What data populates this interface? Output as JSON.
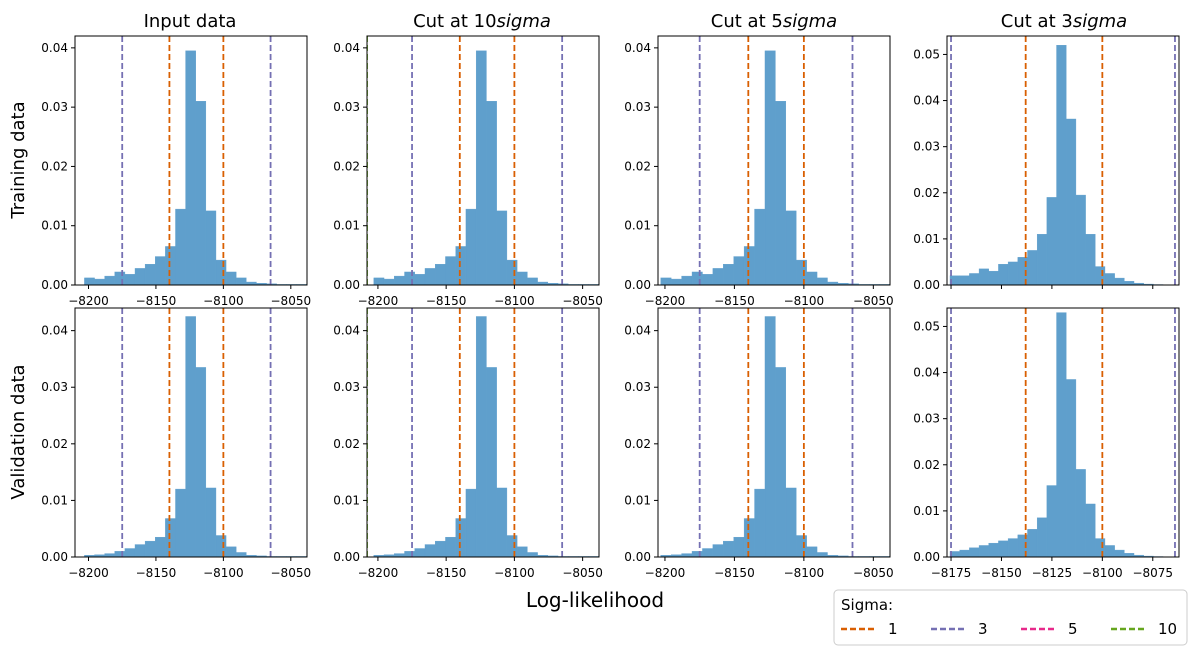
{
  "figure": {
    "xlabel": "Log-likelihood",
    "row_labels": [
      "Training data",
      "Validation data"
    ],
    "column_titles": [
      {
        "text": "Input data",
        "italic": ""
      },
      {
        "text": "Cut at 10",
        "italic": "sigma"
      },
      {
        "text": "Cut at 5",
        "italic": "sigma"
      },
      {
        "text": "Cut at 3",
        "italic": "sigma"
      }
    ],
    "legend": {
      "title": "Sigma:",
      "entries": [
        {
          "label": "1",
          "color": "#d95f02"
        },
        {
          "label": "3",
          "color": "#7570b3"
        },
        {
          "label": "5",
          "color": "#e7298a"
        },
        {
          "label": "10",
          "color": "#66a61e"
        }
      ]
    },
    "colors": {
      "bars": "#5f9fcc",
      "sigma1": "#d95f02",
      "sigma3": "#7570b3",
      "sigma5": "#e7298a",
      "sigma10": "#66a61e"
    }
  },
  "chart_data": [
    {
      "type": "bar",
      "row": 0,
      "col": 0,
      "xlim": [
        -8210,
        -8038
      ],
      "ylim": [
        0,
        0.042
      ],
      "xticks": [
        -8200,
        -8150,
        -8100,
        -8050
      ],
      "xtick_labels": [
        "−8200",
        "−8150",
        "−8100",
        "−8050"
      ],
      "yticks": [
        0.0,
        0.01,
        0.02,
        0.03,
        0.04
      ],
      "ytick_labels": [
        "0.00",
        "0.01",
        "0.02",
        "0.03",
        "0.04"
      ],
      "bin_width": 7.5,
      "bin_starts": [
        -8203,
        -8195.5,
        -8188,
        -8180.5,
        -8173,
        -8165.5,
        -8158,
        -8150.5,
        -8143,
        -8135.5,
        -8128,
        -8120.5,
        -8113,
        -8105.5,
        -8098,
        -8090.5,
        -8083,
        -8075.5,
        -8068,
        -8060.5,
        -8053,
        -8045.5
      ],
      "values": [
        0.0012,
        0.001,
        0.0015,
        0.0022,
        0.0018,
        0.0028,
        0.0035,
        0.0048,
        0.0065,
        0.0128,
        0.0395,
        0.031,
        0.0125,
        0.0042,
        0.0022,
        0.0012,
        0.0005,
        0.0003,
        0.0002,
        0.0001,
        0.0001,
        0.0001
      ],
      "vlines": [
        {
          "sigma": 1,
          "x": [
            -8140,
            -8100
          ]
        },
        {
          "sigma": 3,
          "x": [
            -8175,
            -8065
          ]
        }
      ]
    },
    {
      "type": "bar",
      "row": 0,
      "col": 1,
      "xlim": [
        -8208,
        -8038
      ],
      "ylim": [
        0,
        0.042
      ],
      "xticks": [
        -8200,
        -8150,
        -8100,
        -8050
      ],
      "xtick_labels": [
        "−8200",
        "−8150",
        "−8100",
        "−8050"
      ],
      "yticks": [
        0.0,
        0.01,
        0.02,
        0.03,
        0.04
      ],
      "ytick_labels": [
        "0.00",
        "0.01",
        "0.02",
        "0.03",
        "0.04"
      ],
      "bin_width": 7.5,
      "bin_starts": [
        -8203,
        -8195.5,
        -8188,
        -8180.5,
        -8173,
        -8165.5,
        -8158,
        -8150.5,
        -8143,
        -8135.5,
        -8128,
        -8120.5,
        -8113,
        -8105.5,
        -8098,
        -8090.5,
        -8083,
        -8075.5,
        -8068,
        -8060.5,
        -8053,
        -8045.5
      ],
      "values": [
        0.0012,
        0.001,
        0.0015,
        0.0022,
        0.0018,
        0.0028,
        0.0035,
        0.0048,
        0.0065,
        0.0128,
        0.0395,
        0.031,
        0.0125,
        0.0042,
        0.0022,
        0.0012,
        0.0005,
        0.0003,
        0.0002,
        0.0001,
        0.0001,
        0.0001
      ],
      "vlines": [
        {
          "sigma": 1,
          "x": [
            -8140,
            -8100
          ]
        },
        {
          "sigma": 3,
          "x": [
            -8175,
            -8065
          ]
        },
        {
          "sigma": 10,
          "x": [
            -8208
          ]
        }
      ]
    },
    {
      "type": "bar",
      "row": 0,
      "col": 2,
      "xlim": [
        -8205,
        -8038
      ],
      "ylim": [
        0,
        0.042
      ],
      "xticks": [
        -8200,
        -8150,
        -8100,
        -8050
      ],
      "xtick_labels": [
        "−8200",
        "−8150",
        "−8100",
        "−8050"
      ],
      "yticks": [
        0.0,
        0.01,
        0.02,
        0.03,
        0.04
      ],
      "ytick_labels": [
        "0.00",
        "0.01",
        "0.02",
        "0.03",
        "0.04"
      ],
      "bin_width": 7.5,
      "bin_starts": [
        -8203,
        -8195.5,
        -8188,
        -8180.5,
        -8173,
        -8165.5,
        -8158,
        -8150.5,
        -8143,
        -8135.5,
        -8128,
        -8120.5,
        -8113,
        -8105.5,
        -8098,
        -8090.5,
        -8083,
        -8075.5,
        -8068,
        -8060.5,
        -8053,
        -8045.5
      ],
      "values": [
        0.0012,
        0.001,
        0.0015,
        0.0022,
        0.0018,
        0.0028,
        0.0035,
        0.0048,
        0.0065,
        0.0128,
        0.0395,
        0.031,
        0.0125,
        0.0042,
        0.0022,
        0.0012,
        0.0005,
        0.0003,
        0.0002,
        0.0001,
        0.0001,
        0.0001
      ],
      "vlines": [
        {
          "sigma": 1,
          "x": [
            -8140,
            -8100
          ]
        },
        {
          "sigma": 3,
          "x": [
            -8175,
            -8065
          ]
        }
      ]
    },
    {
      "type": "bar",
      "row": 0,
      "col": 3,
      "xlim": [
        -8177,
        -8062
      ],
      "ylim": [
        0,
        0.054
      ],
      "xticks": [
        -8175,
        -8150,
        -8125,
        -8100,
        -8075
      ],
      "xtick_labels": [
        "",
        "",
        "",
        "",
        ""
      ],
      "yticks": [
        0.0,
        0.01,
        0.02,
        0.03,
        0.04,
        0.05
      ],
      "ytick_labels": [
        "0.00",
        "0.01",
        "0.02",
        "0.03",
        "0.04",
        "0.05"
      ],
      "bin_width": 4.8,
      "bin_starts": [
        -8175.5,
        -8170.7,
        -8165.9,
        -8161.1,
        -8156.3,
        -8151.5,
        -8146.7,
        -8141.9,
        -8137.1,
        -8132.3,
        -8127.5,
        -8122.7,
        -8117.9,
        -8113.1,
        -8108.3,
        -8103.5,
        -8098.7,
        -8093.9,
        -8089.1,
        -8084.3,
        -8079.5,
        -8074.7
      ],
      "values": [
        0.002,
        0.002,
        0.0025,
        0.0035,
        0.003,
        0.0045,
        0.005,
        0.006,
        0.0075,
        0.011,
        0.019,
        0.052,
        0.036,
        0.0195,
        0.011,
        0.004,
        0.0025,
        0.0015,
        0.0008,
        0.0004,
        0.0002,
        0.0001
      ],
      "vlines": [
        {
          "sigma": 1,
          "x": [
            -8138,
            -8100
          ]
        },
        {
          "sigma": 3,
          "x": [
            -8175,
            -8064
          ]
        }
      ]
    },
    {
      "type": "bar",
      "row": 1,
      "col": 0,
      "xlim": [
        -8210,
        -8038
      ],
      "ylim": [
        0,
        0.044
      ],
      "xticks": [
        -8200,
        -8150,
        -8100,
        -8050
      ],
      "xtick_labels": [
        "−8200",
        "−8150",
        "−8100",
        "−8050"
      ],
      "yticks": [
        0.0,
        0.01,
        0.02,
        0.03,
        0.04
      ],
      "ytick_labels": [
        "0.00",
        "0.01",
        "0.02",
        "0.03",
        "0.04"
      ],
      "bin_width": 7.5,
      "bin_starts": [
        -8203,
        -8195.5,
        -8188,
        -8180.5,
        -8173,
        -8165.5,
        -8158,
        -8150.5,
        -8143,
        -8135.5,
        -8128,
        -8120.5,
        -8113,
        -8105.5,
        -8098,
        -8090.5,
        -8083,
        -8075.5,
        -8068,
        -8060.5,
        -8053,
        -8045.5
      ],
      "values": [
        0.0003,
        0.0004,
        0.0006,
        0.001,
        0.0015,
        0.0022,
        0.0028,
        0.0035,
        0.0068,
        0.012,
        0.0425,
        0.0335,
        0.0122,
        0.0038,
        0.0018,
        0.0008,
        0.0003,
        0.0002,
        0.0001,
        0.0001,
        0.0001,
        0.0001
      ],
      "vlines": [
        {
          "sigma": 1,
          "x": [
            -8140,
            -8100
          ]
        },
        {
          "sigma": 3,
          "x": [
            -8175,
            -8065
          ]
        }
      ]
    },
    {
      "type": "bar",
      "row": 1,
      "col": 1,
      "xlim": [
        -8208,
        -8038
      ],
      "ylim": [
        0,
        0.044
      ],
      "xticks": [
        -8200,
        -8150,
        -8100,
        -8050
      ],
      "xtick_labels": [
        "−8200",
        "−8150",
        "−8100",
        "−8050"
      ],
      "yticks": [
        0.0,
        0.01,
        0.02,
        0.03,
        0.04
      ],
      "ytick_labels": [
        "0.00",
        "0.01",
        "0.02",
        "0.03",
        "0.04"
      ],
      "bin_width": 7.5,
      "bin_starts": [
        -8203,
        -8195.5,
        -8188,
        -8180.5,
        -8173,
        -8165.5,
        -8158,
        -8150.5,
        -8143,
        -8135.5,
        -8128,
        -8120.5,
        -8113,
        -8105.5,
        -8098,
        -8090.5,
        -8083,
        -8075.5,
        -8068,
        -8060.5,
        -8053,
        -8045.5
      ],
      "values": [
        0.0003,
        0.0004,
        0.0006,
        0.001,
        0.0015,
        0.0022,
        0.0028,
        0.0035,
        0.0068,
        0.012,
        0.0425,
        0.0335,
        0.0122,
        0.0038,
        0.0018,
        0.0008,
        0.0003,
        0.0002,
        0.0001,
        0.0001,
        0.0001,
        0.0001
      ],
      "vlines": [
        {
          "sigma": 1,
          "x": [
            -8140,
            -8100
          ]
        },
        {
          "sigma": 3,
          "x": [
            -8175,
            -8065
          ]
        },
        {
          "sigma": 10,
          "x": [
            -8208
          ]
        }
      ]
    },
    {
      "type": "bar",
      "row": 1,
      "col": 2,
      "xlim": [
        -8205,
        -8038
      ],
      "ylim": [
        0,
        0.044
      ],
      "xticks": [
        -8200,
        -8150,
        -8100,
        -8050
      ],
      "xtick_labels": [
        "−8200",
        "−8150",
        "−8100",
        "−8050"
      ],
      "yticks": [
        0.0,
        0.01,
        0.02,
        0.03,
        0.04
      ],
      "ytick_labels": [
        "0.00",
        "0.01",
        "0.02",
        "0.03",
        "0.04"
      ],
      "bin_width": 7.5,
      "bin_starts": [
        -8203,
        -8195.5,
        -8188,
        -8180.5,
        -8173,
        -8165.5,
        -8158,
        -8150.5,
        -8143,
        -8135.5,
        -8128,
        -8120.5,
        -8113,
        -8105.5,
        -8098,
        -8090.5,
        -8083,
        -8075.5,
        -8068,
        -8060.5,
        -8053,
        -8045.5
      ],
      "values": [
        0.0003,
        0.0004,
        0.0006,
        0.001,
        0.0015,
        0.0022,
        0.0028,
        0.0035,
        0.0068,
        0.012,
        0.0425,
        0.0335,
        0.0122,
        0.0038,
        0.0018,
        0.0008,
        0.0003,
        0.0002,
        0.0001,
        0.0001,
        0.0001,
        0.0001
      ],
      "vlines": [
        {
          "sigma": 1,
          "x": [
            -8140,
            -8100
          ]
        },
        {
          "sigma": 3,
          "x": [
            -8175,
            -8065
          ]
        }
      ]
    },
    {
      "type": "bar",
      "row": 1,
      "col": 3,
      "xlim": [
        -8177,
        -8062
      ],
      "ylim": [
        0,
        0.054
      ],
      "xticks": [
        -8175,
        -8150,
        -8125,
        -8100,
        -8075
      ],
      "xtick_labels": [
        "−8175",
        "−8150",
        "−8125",
        "−8100",
        "−8075"
      ],
      "yticks": [
        0.0,
        0.01,
        0.02,
        0.03,
        0.04,
        0.05
      ],
      "ytick_labels": [
        "0.00",
        "0.01",
        "0.02",
        "0.03",
        "0.04",
        "0.05"
      ],
      "bin_width": 4.8,
      "bin_starts": [
        -8175.5,
        -8170.7,
        -8165.9,
        -8161.1,
        -8156.3,
        -8151.5,
        -8146.7,
        -8141.9,
        -8137.1,
        -8132.3,
        -8127.5,
        -8122.7,
        -8117.9,
        -8113.1,
        -8108.3,
        -8103.5,
        -8098.7,
        -8093.9,
        -8089.1,
        -8084.3,
        -8079.5,
        -8074.7
      ],
      "values": [
        0.0012,
        0.0015,
        0.002,
        0.0025,
        0.003,
        0.0035,
        0.004,
        0.0048,
        0.006,
        0.0085,
        0.0155,
        0.053,
        0.0385,
        0.019,
        0.0115,
        0.004,
        0.0025,
        0.0015,
        0.0008,
        0.0004,
        0.0002,
        0.0001
      ],
      "vlines": [
        {
          "sigma": 1,
          "x": [
            -8138,
            -8100
          ]
        },
        {
          "sigma": 3,
          "x": [
            -8175,
            -8064
          ]
        }
      ]
    }
  ]
}
